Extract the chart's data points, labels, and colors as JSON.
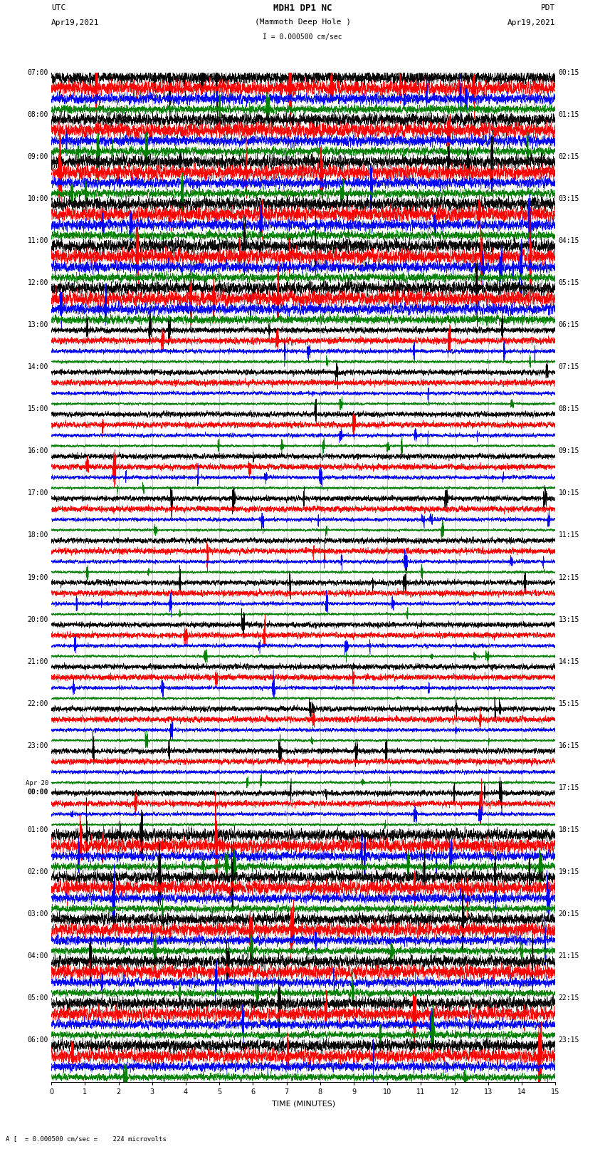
{
  "title_line1": "MDH1 DP1 NC",
  "title_line2": "(Mammoth Deep Hole )",
  "scale_label": "I = 0.000500 cm/sec",
  "footer_label": "A [  = 0.000500 cm/sec =    224 microvolts",
  "utc_label": "UTC",
  "utc_date": "Apr19,2021",
  "pdt_label": "PDT",
  "pdt_date": "Apr19,2021",
  "xlabel": "TIME (MINUTES)",
  "left_times": [
    "07:00",
    "08:00",
    "09:00",
    "10:00",
    "11:00",
    "12:00",
    "13:00",
    "14:00",
    "15:00",
    "16:00",
    "17:00",
    "18:00",
    "19:00",
    "20:00",
    "21:00",
    "22:00",
    "23:00",
    "Apr 20\n00:00",
    "01:00",
    "02:00",
    "03:00",
    "04:00",
    "05:00",
    "06:00"
  ],
  "right_times": [
    "00:15",
    "01:15",
    "02:15",
    "03:15",
    "04:15",
    "05:15",
    "06:15",
    "07:15",
    "08:15",
    "09:15",
    "10:15",
    "11:15",
    "12:15",
    "13:15",
    "14:15",
    "15:15",
    "16:15",
    "17:15",
    "18:15",
    "19:15",
    "20:15",
    "21:15",
    "22:15",
    "23:15"
  ],
  "n_rows": 24,
  "traces_per_row": 4,
  "colors": [
    "black",
    "red",
    "blue",
    "green"
  ],
  "bg_color": "white",
  "xlim": [
    0,
    15
  ],
  "xticks": [
    0,
    1,
    2,
    3,
    4,
    5,
    6,
    7,
    8,
    9,
    10,
    11,
    12,
    13,
    14,
    15
  ],
  "fontsize_title": 9,
  "fontsize_labels": 8,
  "fontsize_ticks": 7,
  "amplitude_rows": [
    [
      0.42,
      0.48,
      0.35,
      0.28
    ],
    [
      0.42,
      0.48,
      0.35,
      0.28
    ],
    [
      0.42,
      0.48,
      0.35,
      0.28
    ],
    [
      0.42,
      0.48,
      0.35,
      0.28
    ],
    [
      0.42,
      0.48,
      0.35,
      0.28
    ],
    [
      0.42,
      0.48,
      0.35,
      0.28
    ],
    [
      0.2,
      0.22,
      0.15,
      0.1
    ],
    [
      0.18,
      0.2,
      0.13,
      0.09
    ],
    [
      0.18,
      0.2,
      0.13,
      0.09
    ],
    [
      0.18,
      0.2,
      0.13,
      0.09
    ],
    [
      0.18,
      0.2,
      0.13,
      0.09
    ],
    [
      0.18,
      0.2,
      0.13,
      0.09
    ],
    [
      0.18,
      0.2,
      0.13,
      0.09
    ],
    [
      0.18,
      0.2,
      0.13,
      0.09
    ],
    [
      0.18,
      0.2,
      0.13,
      0.09
    ],
    [
      0.18,
      0.2,
      0.13,
      0.09
    ],
    [
      0.18,
      0.2,
      0.13,
      0.09
    ],
    [
      0.18,
      0.2,
      0.13,
      0.09
    ],
    [
      0.38,
      0.44,
      0.3,
      0.24
    ],
    [
      0.38,
      0.44,
      0.3,
      0.24
    ],
    [
      0.38,
      0.44,
      0.3,
      0.24
    ],
    [
      0.38,
      0.44,
      0.3,
      0.24
    ],
    [
      0.38,
      0.44,
      0.3,
      0.24
    ],
    [
      0.38,
      0.44,
      0.3,
      0.24
    ]
  ]
}
